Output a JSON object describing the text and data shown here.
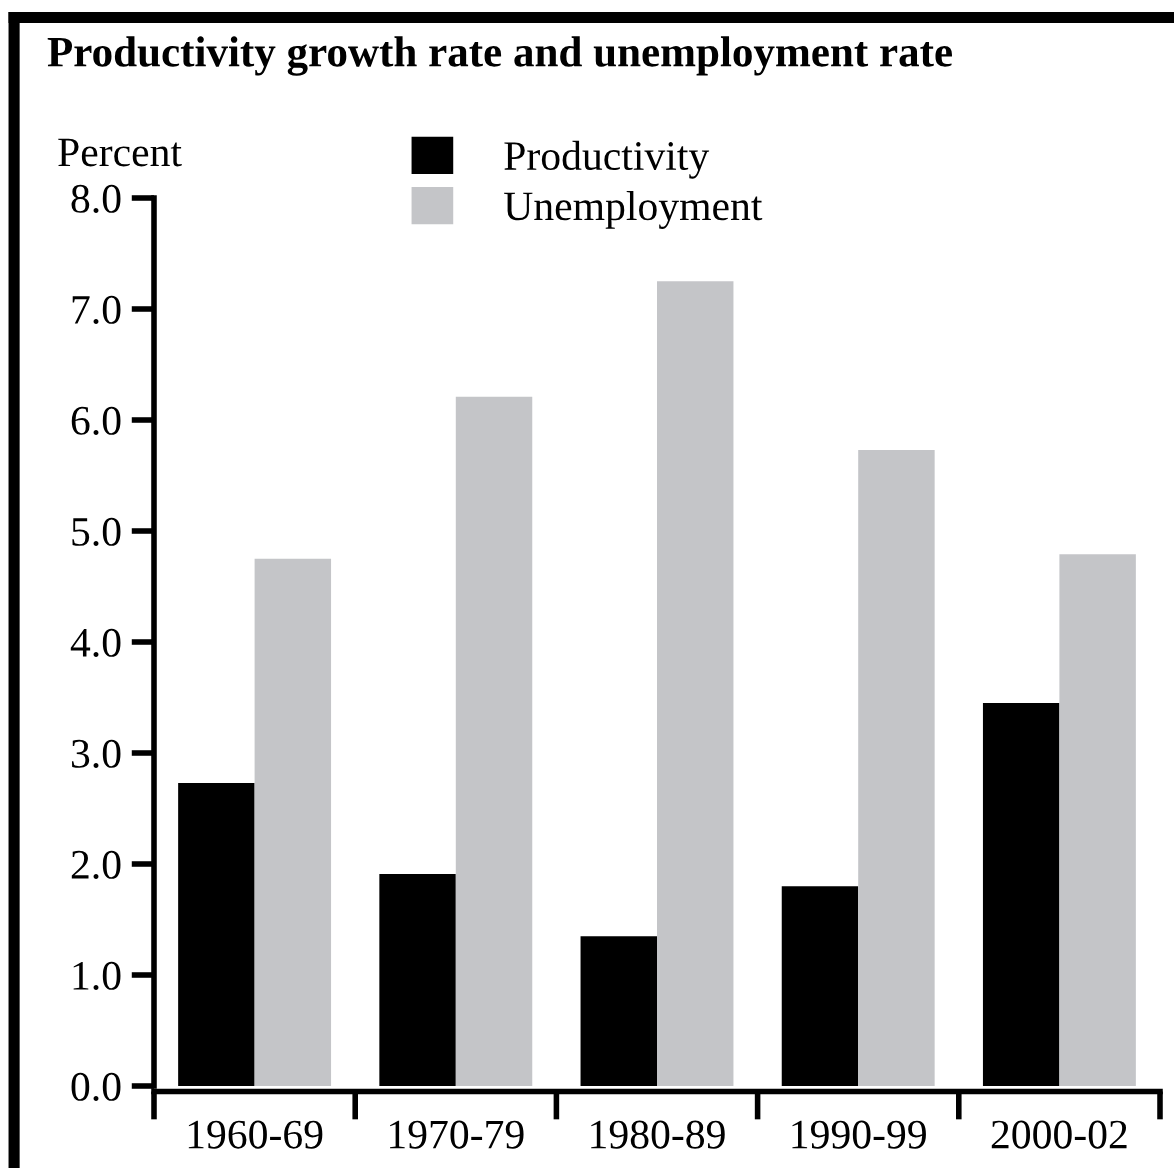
{
  "chart_data": {
    "type": "bar",
    "title": "Productivity growth rate and unemployment rate",
    "ylabel": "Percent",
    "categories": [
      "1960-69",
      "1970-79",
      "1980-89",
      "1990-99",
      "2000-02"
    ],
    "series": [
      {
        "name": "Productivity",
        "color": "#000000",
        "values": [
          2.73,
          1.91,
          1.35,
          1.8,
          3.45
        ]
      },
      {
        "name": "Unemployment",
        "color": "#c4c5c8",
        "values": [
          4.75,
          6.21,
          7.25,
          5.73,
          4.79
        ]
      }
    ],
    "ylim": [
      0,
      8
    ],
    "yticks": [
      {
        "value": 0,
        "label": "0.0"
      },
      {
        "value": 1,
        "label": "1.0"
      },
      {
        "value": 2,
        "label": "2.0"
      },
      {
        "value": 3,
        "label": "3.0"
      },
      {
        "value": 4,
        "label": "4.0"
      },
      {
        "value": 5,
        "label": "5.0"
      },
      {
        "value": 6,
        "label": "6.0"
      },
      {
        "value": 7,
        "label": "7.0"
      },
      {
        "value": 8,
        "label": "8.0"
      }
    ],
    "grid": false,
    "legend": "top"
  }
}
